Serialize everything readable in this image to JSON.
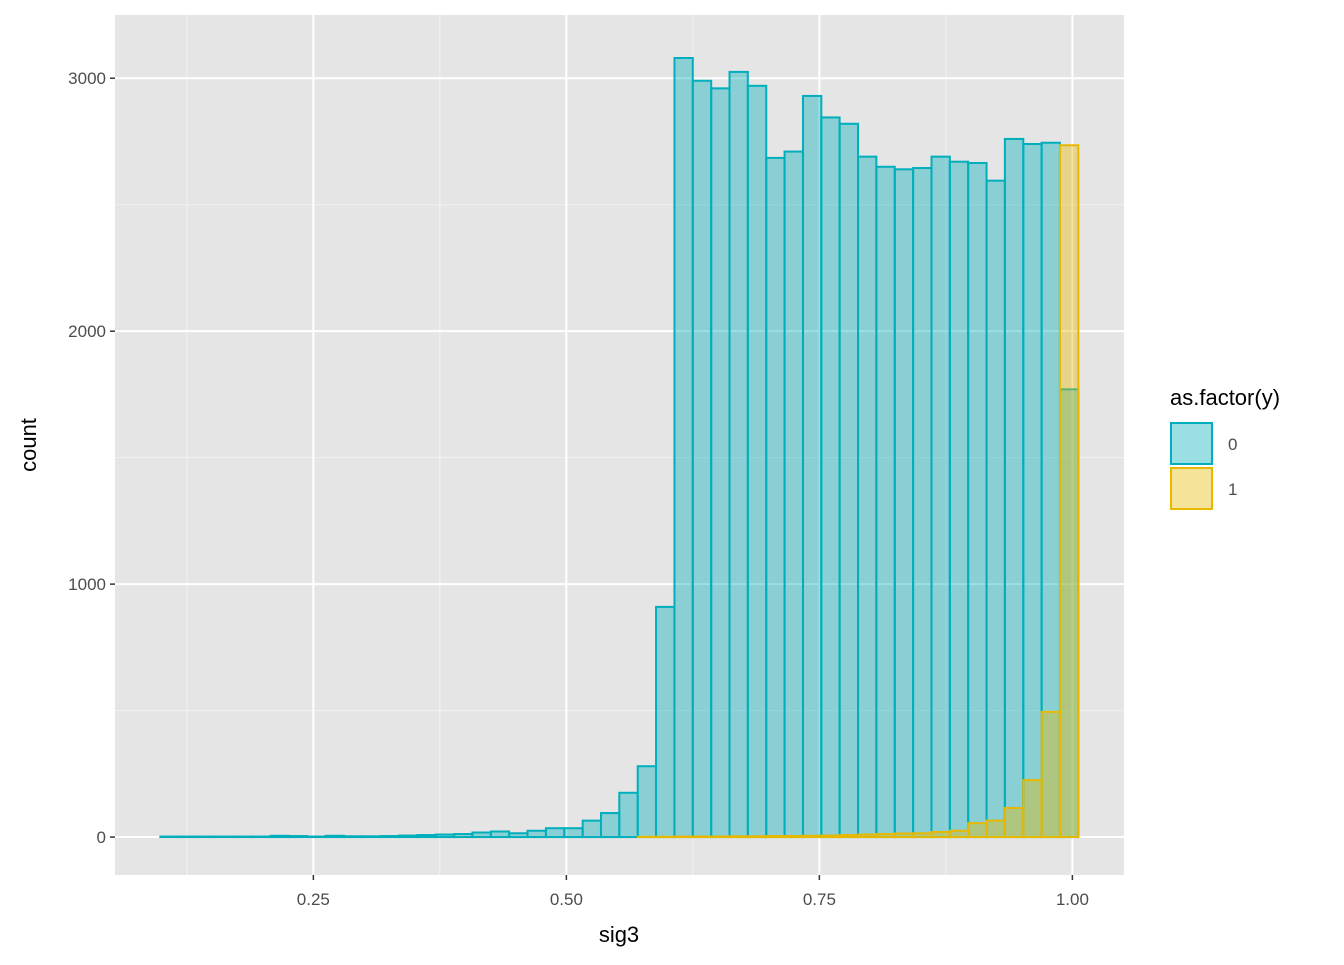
{
  "chart_data": {
    "type": "histogram",
    "x_label": "sig3",
    "y_label": "count",
    "legend_title": "as.factor(y)",
    "legend_position": "right",
    "bins": [
      0.0988,
      0.1169,
      0.1351,
      0.1532,
      0.1714,
      0.1895,
      0.2077,
      0.2258,
      0.2439,
      0.2621,
      0.2802,
      0.2984,
      0.3165,
      0.3346,
      0.3528,
      0.3709,
      0.3891,
      0.4072,
      0.4254,
      0.4435,
      0.4616,
      0.4798,
      0.4979,
      0.5161,
      0.5342,
      0.5523,
      0.5705,
      0.5886,
      0.6068,
      0.6249,
      0.6431,
      0.6612,
      0.6793,
      0.6975,
      0.7156,
      0.7338,
      0.7519,
      0.77,
      0.7882,
      0.8063,
      0.8245,
      0.8426,
      0.8608,
      0.8789,
      0.897,
      0.9152,
      0.9333,
      0.9515,
      0.9696,
      0.9877,
      1.0059
    ],
    "series": [
      {
        "name": "0",
        "color": "#00AFBB",
        "values": [
          2,
          2,
          2,
          2,
          2,
          2,
          5,
          4,
          2,
          5,
          3,
          3,
          4,
          6,
          8,
          10,
          12,
          18,
          22,
          15,
          25,
          35,
          35,
          65,
          95,
          175,
          280,
          910,
          3080,
          2990,
          2960,
          3025,
          2970,
          2685,
          2710,
          2930,
          2845,
          2820,
          2690,
          2650,
          2640,
          2645,
          2690,
          2670,
          2665,
          2595,
          2760,
          2740,
          2745,
          1770
        ]
      },
      {
        "name": "1",
        "color": "#E7B800",
        "values": [
          0,
          0,
          0,
          0,
          0,
          0,
          0,
          0,
          0,
          0,
          0,
          0,
          0,
          0,
          0,
          0,
          0,
          0,
          0,
          0,
          0,
          0,
          0,
          0,
          0,
          0,
          1,
          1,
          2,
          2,
          2,
          3,
          3,
          4,
          4,
          5,
          6,
          8,
          10,
          12,
          14,
          15,
          20,
          25,
          55,
          65,
          115,
          225,
          495,
          2735
        ]
      }
    ],
    "xlim": [
      0.054,
      1.051
    ],
    "ylim": [
      -150,
      3250
    ],
    "xticks": [
      {
        "value": 0.25,
        "label": "0.25"
      },
      {
        "value": 0.5,
        "label": "0.50"
      },
      {
        "value": 0.75,
        "label": "0.75"
      },
      {
        "value": 1,
        "label": "1.00"
      }
    ],
    "yticks": [
      0,
      1000,
      2000,
      3000
    ],
    "x_minor_grid": [
      0.125,
      0.375,
      0.625,
      0.875
    ],
    "y_minor_grid": [
      500,
      1500,
      2500
    ],
    "grid": true,
    "fill_opacity": 0.4
  }
}
